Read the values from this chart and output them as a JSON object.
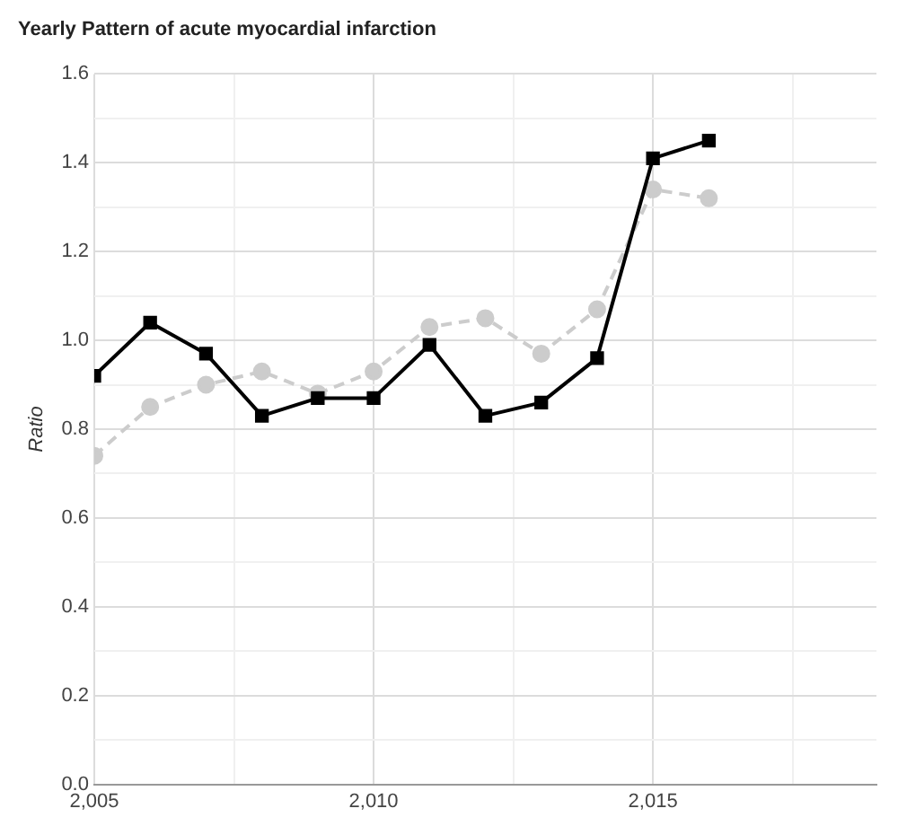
{
  "chart_data": {
    "type": "line",
    "title": "Yearly Pattern of acute myocardial infarction",
    "ylabel": "Ratio",
    "x": [
      2005,
      2006,
      2007,
      2008,
      2009,
      2010,
      2011,
      2012,
      2013,
      2014,
      2015,
      2016
    ],
    "series": [
      {
        "color": "#cccccc",
        "marker": "circle",
        "line_style": "dashed",
        "values": [
          0.74,
          0.85,
          0.9,
          0.93,
          0.88,
          0.93,
          1.03,
          1.05,
          0.97,
          1.07,
          1.34,
          1.32
        ]
      },
      {
        "color": "#000000",
        "marker": "square",
        "line_style": "solid",
        "values": [
          0.92,
          1.04,
          0.97,
          0.83,
          0.87,
          0.87,
          0.99,
          0.83,
          0.86,
          0.96,
          1.41,
          1.45
        ]
      }
    ],
    "xlim": [
      2005,
      2019
    ],
    "xticks": [
      {
        "value": 2005,
        "label": "2,005"
      },
      {
        "value": 2007.5,
        "label": null
      },
      {
        "value": 2010,
        "label": "2,010"
      },
      {
        "value": 2012.5,
        "label": null
      },
      {
        "value": 2015,
        "label": "2,015"
      },
      {
        "value": 2017.5,
        "label": null
      }
    ],
    "ylim": [
      0,
      1.6
    ],
    "yticks": [
      {
        "value": 0,
        "label": "0.0"
      },
      {
        "value": 0.1,
        "label": null
      },
      {
        "value": 0.2,
        "label": "0.2"
      },
      {
        "value": 0.3,
        "label": null
      },
      {
        "value": 0.4,
        "label": "0.4"
      },
      {
        "value": 0.5,
        "label": null
      },
      {
        "value": 0.6,
        "label": "0.6"
      },
      {
        "value": 0.7,
        "label": null
      },
      {
        "value": 0.8,
        "label": "0.8"
      },
      {
        "value": 0.9,
        "label": null
      },
      {
        "value": 1.0,
        "label": "1.0"
      },
      {
        "value": 1.1,
        "label": null
      },
      {
        "value": 1.2,
        "label": "1.2"
      },
      {
        "value": 1.3,
        "label": null
      },
      {
        "value": 1.4,
        "label": "1.4"
      },
      {
        "value": 1.5,
        "label": null
      },
      {
        "value": 1.6,
        "label": "1.6"
      }
    ],
    "grid": true,
    "legend": false
  }
}
